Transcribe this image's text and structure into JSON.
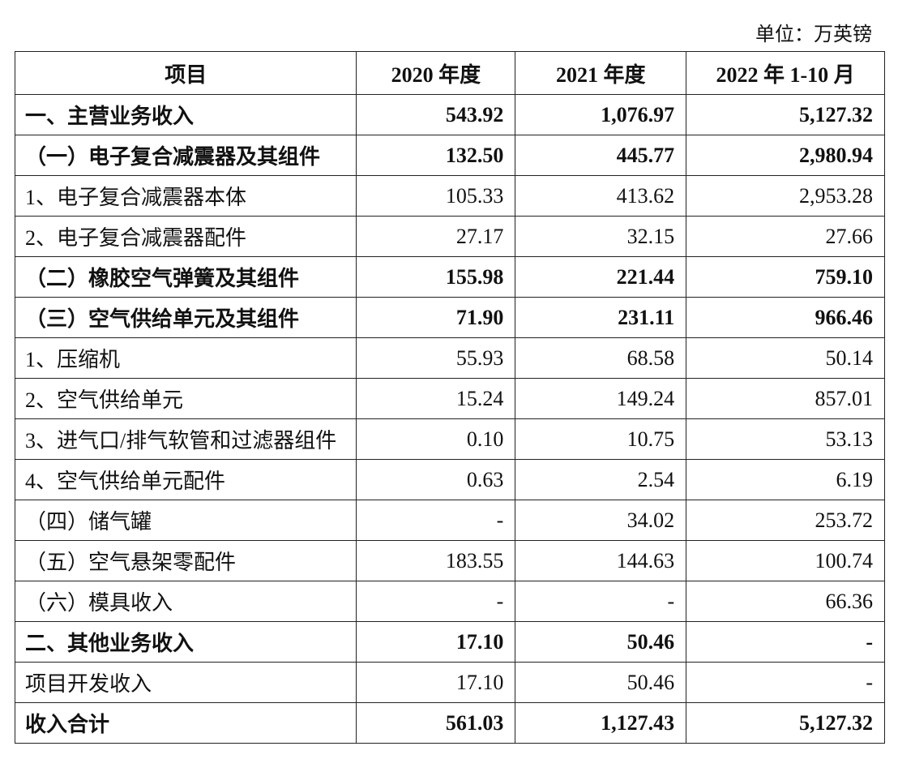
{
  "unit": "单位：万英镑",
  "table": {
    "header": [
      "项目",
      "2020 年度",
      "2021 年度",
      "2022 年 1-10 月"
    ],
    "rows": [
      {
        "cells": [
          "一、主营业务收入",
          "543.92",
          "1,076.97",
          "5,127.32"
        ],
        "bold": true
      },
      {
        "cells": [
          "（一）电子复合减震器及其组件",
          "132.50",
          "445.77",
          "2,980.94"
        ],
        "bold": true
      },
      {
        "cells": [
          "1、电子复合减震器本体",
          "105.33",
          "413.62",
          "2,953.28"
        ],
        "bold": false
      },
      {
        "cells": [
          "2、电子复合减震器配件",
          "27.17",
          "32.15",
          "27.66"
        ],
        "bold": false
      },
      {
        "cells": [
          "（二）橡胶空气弹簧及其组件",
          "155.98",
          "221.44",
          "759.10"
        ],
        "bold": true
      },
      {
        "cells": [
          "（三）空气供给单元及其组件",
          "71.90",
          "231.11",
          "966.46"
        ],
        "bold": true
      },
      {
        "cells": [
          "1、压缩机",
          "55.93",
          "68.58",
          "50.14"
        ],
        "bold": false
      },
      {
        "cells": [
          "2、空气供给单元",
          "15.24",
          "149.24",
          "857.01"
        ],
        "bold": false
      },
      {
        "cells": [
          "3、进气口/排气软管和过滤器组件",
          "0.10",
          "10.75",
          "53.13"
        ],
        "bold": false
      },
      {
        "cells": [
          "4、空气供给单元配件",
          "0.63",
          "2.54",
          "6.19"
        ],
        "bold": false
      },
      {
        "cells": [
          "（四）储气罐",
          "-",
          "34.02",
          "253.72"
        ],
        "bold": false
      },
      {
        "cells": [
          "（五）空气悬架零配件",
          "183.55",
          "144.63",
          "100.74"
        ],
        "bold": false
      },
      {
        "cells": [
          "（六）模具收入",
          "-",
          "-",
          "66.36"
        ],
        "bold": false
      },
      {
        "cells": [
          "二、其他业务收入",
          "17.10",
          "50.46",
          "-"
        ],
        "bold": true
      },
      {
        "cells": [
          "项目开发收入",
          "17.10",
          "50.46",
          "-"
        ],
        "bold": false
      },
      {
        "cells": [
          "收入合计",
          "561.03",
          "1,127.43",
          "5,127.32"
        ],
        "bold": true
      }
    ]
  }
}
